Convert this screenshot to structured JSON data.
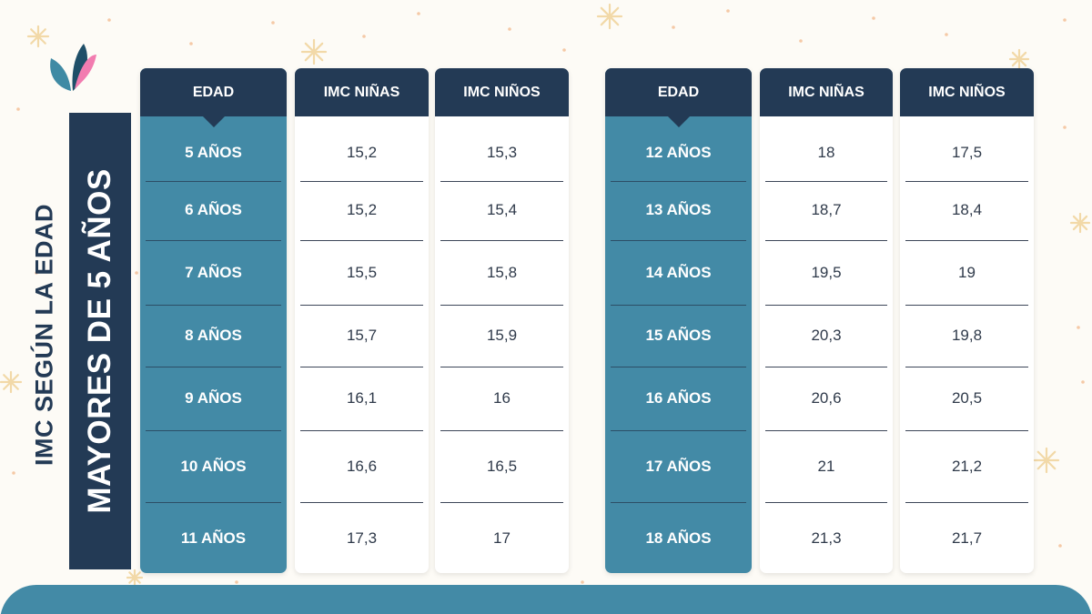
{
  "title_line1": "IMC SEGÚN LA EDAD",
  "title_line2": "MAYORES DE 5 AÑOS",
  "colors": {
    "navy": "#233a55",
    "teal": "#438aa6",
    "background": "#fdfbf6",
    "logo_teal": "#3f8aa4",
    "logo_pink": "#f27cb0"
  },
  "icons": {
    "logo": "leaf-logo-icon",
    "decoration": "sparkle-icon"
  },
  "tables": [
    {
      "headers": {
        "age": "EDAD",
        "girls": "IMC NIÑAS",
        "boys": "IMC NIÑOS"
      },
      "rows": [
        {
          "age": "5 AÑOS",
          "girls": "15,2",
          "boys": "15,3"
        },
        {
          "age": "6 AÑOS",
          "girls": "15,2",
          "boys": "15,4"
        },
        {
          "age": "7 AÑOS",
          "girls": "15,5",
          "boys": "15,8"
        },
        {
          "age": "8 AÑOS",
          "girls": "15,7",
          "boys": "15,9"
        },
        {
          "age": "9 AÑOS",
          "girls": "16,1",
          "boys": "16"
        },
        {
          "age": "10 AÑOS",
          "girls": "16,6",
          "boys": "16,5"
        },
        {
          "age": "11 AÑOS",
          "girls": "17,3",
          "boys": "17"
        }
      ]
    },
    {
      "headers": {
        "age": "EDAD",
        "girls": "IMC NIÑAS",
        "boys": "IMC NIÑOS"
      },
      "rows": [
        {
          "age": "12 AÑOS",
          "girls": "18",
          "boys": "17,5"
        },
        {
          "age": "13 AÑOS",
          "girls": "18,7",
          "boys": "18,4"
        },
        {
          "age": "14 AÑOS",
          "girls": "19,5",
          "boys": "19"
        },
        {
          "age": "15 AÑOS",
          "girls": "20,3",
          "boys": "19,8"
        },
        {
          "age": "16 AÑOS",
          "girls": "20,6",
          "boys": "20,5"
        },
        {
          "age": "17 AÑOS",
          "girls": "21",
          "boys": "21,2"
        },
        {
          "age": "18 AÑOS",
          "girls": "21,3",
          "boys": "21,7"
        }
      ]
    }
  ]
}
